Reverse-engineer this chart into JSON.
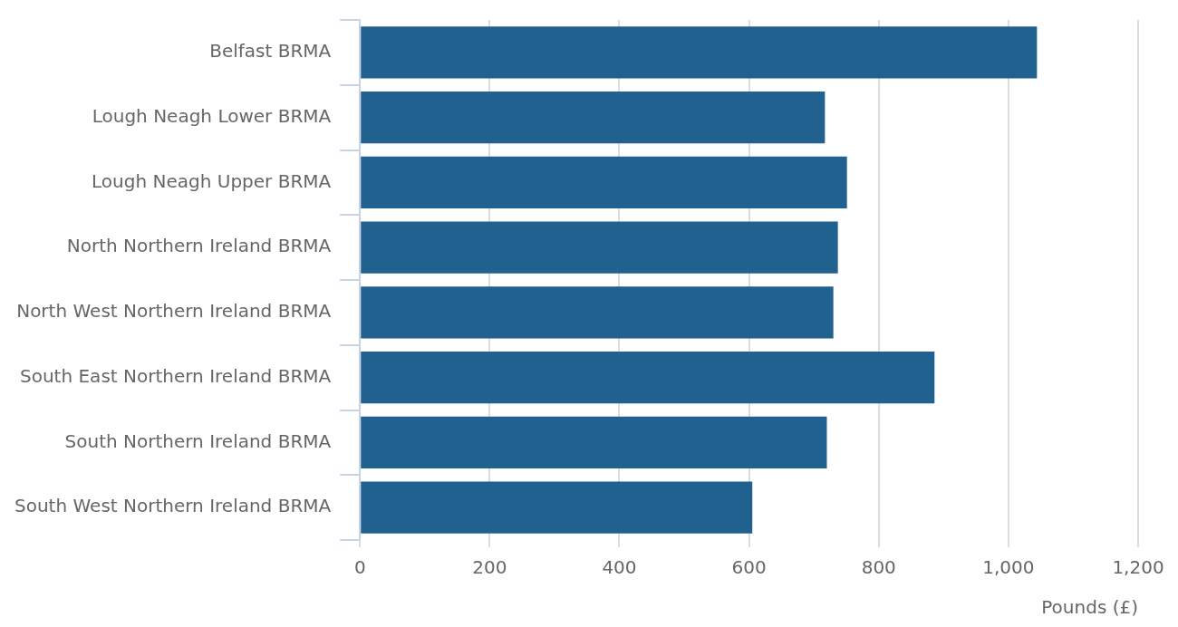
{
  "chart_data": {
    "type": "bar",
    "orientation": "horizontal",
    "xlabel": "Pounds (£)",
    "categories": [
      "Belfast BRMA",
      "Lough Neagh Lower BRMA",
      "Lough Neagh Upper BRMA",
      "North Northern Ireland BRMA",
      "North West Northern Ireland BRMA",
      "South East Northern Ireland BRMA",
      "South Northern Ireland BRMA",
      "South West Northern Ireland BRMA"
    ],
    "values": [
      1044,
      717,
      751,
      737,
      730,
      886,
      720,
      605
    ],
    "color": "#21618f",
    "xlim": [
      0,
      1200
    ],
    "xticks": [
      0,
      200,
      400,
      600,
      {
        "value": 1000,
        "label": "1,000"
      },
      {
        "value": 1200,
        "label": "1,200"
      },
      800
    ],
    "grid": "x",
    "legend": false
  }
}
